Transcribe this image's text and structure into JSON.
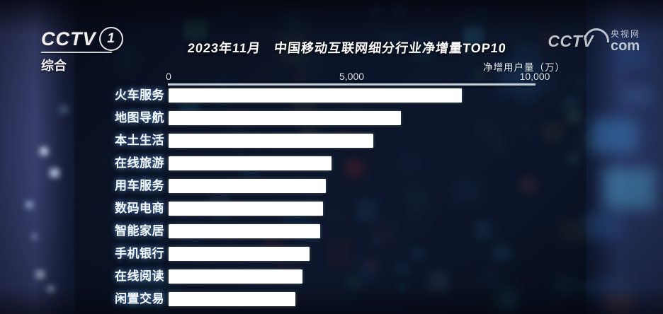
{
  "channel_logo": {
    "brand": "CCTV",
    "number": "1",
    "label": "综合"
  },
  "watermark": {
    "brand": "CCTV",
    "site": "央视网",
    "suffix": "com"
  },
  "chart_data": {
    "type": "bar",
    "orientation": "horizontal",
    "title": "2023年11月　中国移动互联网细分行业净增量TOP10",
    "axis_label": "净增用户量（万）",
    "x_ticks": [
      0,
      5000,
      10000
    ],
    "x_tick_labels": [
      "0",
      "5,000",
      "10,000"
    ],
    "xlim": [
      0,
      10000
    ],
    "categories": [
      "火车服务",
      "地图导航",
      "本土生活",
      "在线旅游",
      "用车服务",
      "数码电商",
      "智能家居",
      "手机银行",
      "在线阅读",
      "闲置交易"
    ],
    "values": [
      8000,
      6340,
      5590,
      4450,
      4290,
      4220,
      4140,
      3850,
      3660,
      3460
    ],
    "bar_color": "#ffffff",
    "grid": false,
    "legend_position": "none"
  }
}
